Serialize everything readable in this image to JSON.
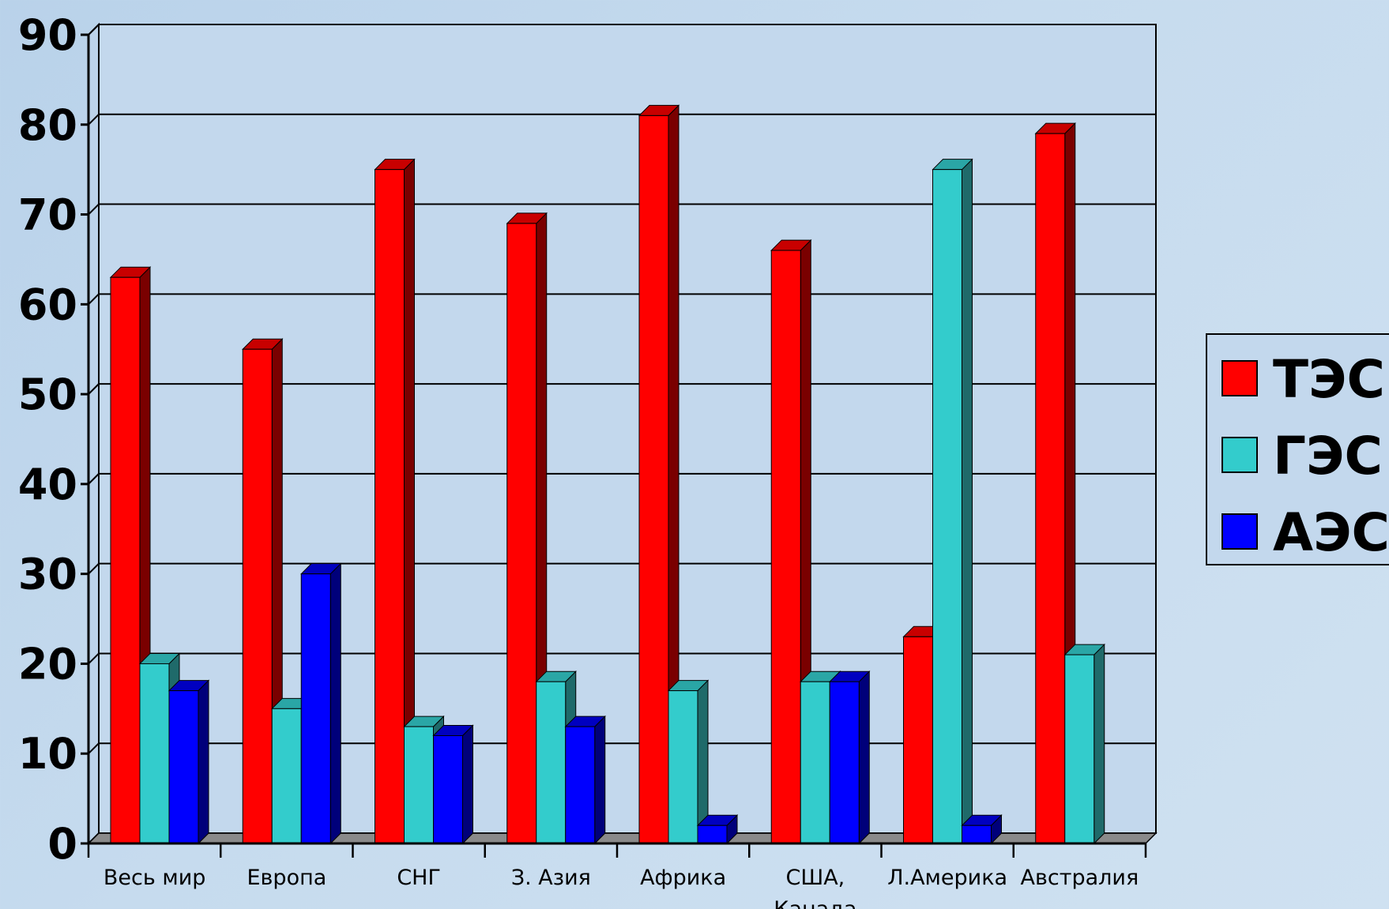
{
  "chart_data": {
    "type": "bar",
    "title": "",
    "xlabel": "",
    "ylabel": "",
    "ylim": [
      0,
      90
    ],
    "yticks": [
      0,
      10,
      20,
      30,
      40,
      50,
      60,
      70,
      80,
      90
    ],
    "grid": true,
    "legend_position": "right",
    "categories": [
      [
        "Весь мир"
      ],
      [
        "Европа"
      ],
      [
        "СНГ"
      ],
      [
        "З. Азия"
      ],
      [
        "Африка"
      ],
      [
        "США,",
        "Канада"
      ],
      [
        "Л.Америка"
      ],
      [
        "Австралия"
      ]
    ],
    "series": [
      {
        "name": "ТЭС",
        "color": "#ff0000",
        "side_color": "#7a0000",
        "top_color": "#c80000",
        "values": [
          63,
          55,
          75,
          69,
          81,
          66,
          23,
          79
        ]
      },
      {
        "name": "ГЭС",
        "color": "#33cccc",
        "side_color": "#1f6a6a",
        "top_color": "#2aa6a6",
        "values": [
          20,
          15,
          13,
          18,
          17,
          18,
          75,
          21
        ]
      },
      {
        "name": "АЭС",
        "color": "#0000ff",
        "side_color": "#00007a",
        "top_color": "#0000c0",
        "values": [
          17,
          30,
          12,
          13,
          2,
          18,
          2,
          0
        ]
      }
    ]
  }
}
